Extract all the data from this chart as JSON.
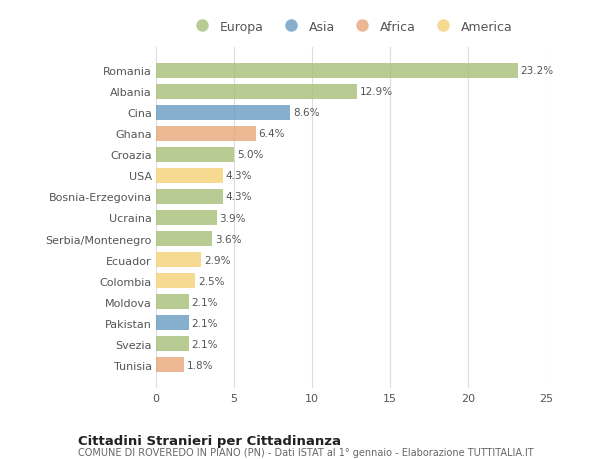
{
  "countries": [
    "Romania",
    "Albania",
    "Cina",
    "Ghana",
    "Croazia",
    "USA",
    "Bosnia-Erzegovina",
    "Ucraina",
    "Serbia/Montenegro",
    "Ecuador",
    "Colombia",
    "Moldova",
    "Pakistan",
    "Svezia",
    "Tunisia"
  ],
  "values": [
    23.2,
    12.9,
    8.6,
    6.4,
    5.0,
    4.3,
    4.3,
    3.9,
    3.6,
    2.9,
    2.5,
    2.1,
    2.1,
    2.1,
    1.8
  ],
  "categories": [
    "Europa",
    "Europa",
    "Asia",
    "Africa",
    "Europa",
    "America",
    "Europa",
    "Europa",
    "Europa",
    "America",
    "America",
    "Europa",
    "Asia",
    "Europa",
    "Africa"
  ],
  "colors": {
    "Europa": "#a8c07a",
    "Asia": "#6b9dc2",
    "Africa": "#e8a87c",
    "America": "#f5d27a"
  },
  "legend_order": [
    "Europa",
    "Asia",
    "Africa",
    "America"
  ],
  "title": "Cittadini Stranieri per Cittadinanza",
  "subtitle": "COMUNE DI ROVEREDO IN PIANO (PN) - Dati ISTAT al 1° gennaio - Elaborazione TUTTITALIA.IT",
  "xlim": [
    0,
    25
  ],
  "xticks": [
    0,
    5,
    10,
    15,
    20,
    25
  ],
  "bg_color": "#ffffff",
  "grid_color": "#dddddd",
  "bar_alpha": 0.82
}
